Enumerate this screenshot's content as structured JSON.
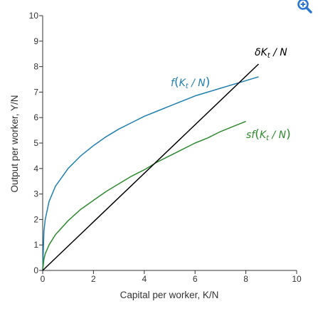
{
  "chart_data": {
    "type": "line",
    "xlabel": "Capital per worker, K/N",
    "ylabel": "Output per worker, Y/N",
    "xlim": [
      0,
      10
    ],
    "ylim": [
      0,
      10
    ],
    "x_ticks": [
      "0",
      "2",
      "4",
      "6",
      "8",
      "10"
    ],
    "y_ticks": [
      "0",
      "1",
      "2",
      "3",
      "4",
      "5",
      "6",
      "7",
      "8",
      "9",
      "10"
    ],
    "grid": false,
    "series": [
      {
        "name": "f(Kt/N)",
        "color": "#1f7fb0",
        "x": [
          0,
          0.05,
          0.1,
          0.25,
          0.5,
          1,
          1.5,
          2,
          2.5,
          3,
          3.5,
          4,
          4.5,
          5,
          5.5,
          6,
          6.5,
          7,
          7.5,
          8,
          8.5
        ],
        "y": [
          0,
          1.55,
          2.0,
          2.7,
          3.3,
          4.0,
          4.5,
          4.9,
          5.25,
          5.55,
          5.8,
          6.05,
          6.25,
          6.45,
          6.65,
          6.85,
          7.0,
          7.15,
          7.3,
          7.45,
          7.6
        ]
      },
      {
        "name": "sf(Kt/N)",
        "color": "#2f8a2f",
        "x": [
          0,
          0.05,
          0.1,
          0.25,
          0.5,
          1,
          1.5,
          2,
          2.5,
          3,
          3.5,
          4,
          4.5,
          5,
          5.5,
          6,
          6.5,
          7,
          7.5,
          8
        ],
        "y": [
          0,
          0.45,
          0.65,
          1.0,
          1.4,
          1.95,
          2.4,
          2.75,
          3.1,
          3.4,
          3.7,
          3.95,
          4.25,
          4.5,
          4.75,
          5.0,
          5.2,
          5.45,
          5.65,
          5.85
        ]
      },
      {
        "name": "δKt/N",
        "color": "#000000",
        "x": [
          0,
          8.5
        ],
        "y": [
          0,
          8.1
        ]
      }
    ]
  },
  "labels": {
    "f": {
      "fn": "f",
      "open": "(",
      "k": "K",
      "sub": "t",
      "rest": " / N",
      "close": ")"
    },
    "sf": {
      "fn": "sf",
      "open": "(",
      "k": "K",
      "sub": "t",
      "rest": " / N",
      "close": ")"
    },
    "delta": {
      "sym": "δ",
      "k": "K",
      "sub": "t",
      "rest": " / N"
    }
  },
  "zoom_icon": "zoom-in-icon"
}
